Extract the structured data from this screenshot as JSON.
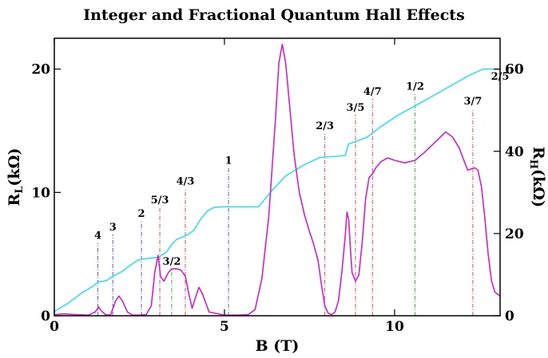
{
  "chart_data": {
    "type": "line",
    "title": "Integer and Fractional Quantum Hall Effects",
    "xlabel": "B (T)",
    "ylabel_left": "R",
    "ylabel_left_sub": "L",
    "ylabel_left_unit": "(kΩ)",
    "ylabel_right": "R",
    "ylabel_right_sub": "H",
    "ylabel_right_unit": "(kΩ)",
    "xlim": [
      0,
      13.1
    ],
    "ylim_left": [
      0,
      22.5
    ],
    "ylim_right": [
      0,
      67.5
    ],
    "x_ticks": [
      0,
      5,
      10
    ],
    "x_tick_labels": [
      "0",
      "5",
      "10"
    ],
    "y_left_ticks": [
      0,
      10,
      20
    ],
    "y_left_tick_labels": [
      "0",
      "10",
      "20"
    ],
    "y_right_ticks": [
      0,
      20,
      40,
      60
    ],
    "y_right_tick_labels": [
      "0",
      "20",
      "40",
      "60"
    ],
    "grid": false,
    "series": [
      {
        "axis": "right",
        "color": "#33e0f0",
        "x": [
          0,
          0.4,
          0.8,
          1.1,
          1.3,
          1.55,
          1.7,
          2.0,
          2.25,
          2.45,
          2.6,
          3.05,
          3.3,
          3.45,
          3.6,
          3.9,
          4.1,
          4.3,
          4.5,
          4.7,
          5.0,
          6.0,
          6.4,
          6.8,
          7.3,
          7.8,
          8.3,
          8.55,
          8.65,
          8.9,
          9.2,
          9.6,
          10.1,
          10.7,
          11.2,
          11.7,
          12.2,
          12.6,
          13.1
        ],
        "values": [
          1,
          3,
          5.5,
          7,
          8.2,
          8.6,
          9.5,
          10.8,
          12.4,
          13.5,
          13.8,
          14.2,
          15.5,
          17.4,
          18.6,
          19.6,
          20.8,
          23.5,
          25.5,
          26.4,
          26.5,
          26.5,
          30.5,
          34,
          36.5,
          38.5,
          38.8,
          39,
          41.8,
          42.5,
          43.5,
          46,
          48.8,
          51.5,
          53.8,
          56.2,
          58.5,
          60,
          60
        ]
      },
      {
        "axis": "left",
        "color": "#d020d0",
        "x": [
          0,
          0.3,
          0.6,
          1.0,
          1.2,
          1.3,
          1.38,
          1.5,
          1.65,
          1.8,
          1.9,
          2.0,
          2.15,
          2.3,
          2.5,
          2.7,
          2.85,
          2.95,
          3.05,
          3.12,
          3.22,
          3.35,
          3.45,
          3.6,
          3.72,
          3.85,
          3.95,
          4.05,
          4.15,
          4.25,
          4.35,
          4.55,
          5.0,
          5.4,
          5.7,
          5.9,
          6.1,
          6.3,
          6.5,
          6.6,
          6.7,
          6.8,
          6.9,
          7.05,
          7.2,
          7.35,
          7.5,
          7.6,
          7.75,
          7.85,
          7.95,
          8.05,
          8.15,
          8.25,
          8.35,
          8.45,
          8.55,
          8.6,
          8.65,
          8.7,
          8.75,
          8.85,
          8.95,
          9.05,
          9.15,
          9.25,
          9.35,
          9.45,
          9.6,
          9.8,
          10.0,
          10.3,
          10.6,
          10.9,
          11.2,
          11.5,
          11.7,
          11.9,
          12.05,
          12.15,
          12.25,
          12.35,
          12.45,
          12.55,
          12.65,
          12.75,
          12.85,
          12.95,
          13.1
        ],
        "values": [
          0.1,
          0.15,
          0.1,
          0.05,
          0.3,
          0.7,
          0.4,
          0.1,
          0.05,
          1.2,
          1.6,
          1.2,
          0.3,
          0.05,
          0.05,
          0.1,
          0.8,
          3.5,
          4.9,
          3.2,
          2.8,
          3.5,
          3.8,
          3.8,
          3.7,
          3.2,
          1.8,
          0.6,
          1.5,
          2.3,
          1.8,
          0.3,
          0.05,
          0.05,
          0.1,
          0.5,
          3.0,
          8.0,
          16.0,
          20.5,
          22.0,
          20.5,
          17.5,
          13.0,
          10.0,
          8.2,
          6.8,
          6.0,
          4.5,
          2.5,
          0.8,
          0.2,
          0.1,
          0.3,
          1.2,
          3.5,
          6.5,
          8.4,
          7.8,
          5.5,
          3.5,
          2.8,
          3.3,
          6.0,
          9.5,
          11.2,
          11.5,
          12.0,
          12.5,
          12.8,
          12.6,
          12.4,
          12.6,
          13.3,
          14.1,
          14.9,
          14.5,
          13.6,
          12.5,
          11.8,
          11.9,
          12.0,
          11.8,
          10.5,
          8.0,
          5.0,
          2.8,
          1.9,
          1.6
        ]
      }
    ],
    "markers": [
      {
        "x": 1.28,
        "label": "4",
        "color": "#6060c0",
        "top": 5.9
      },
      {
        "x": 1.72,
        "label": "3",
        "color": "#6060c0",
        "top": 6.6
      },
      {
        "x": 2.56,
        "label": "2",
        "color": "#6060c0",
        "top": 7.7
      },
      {
        "x": 3.1,
        "label": "5/3",
        "color": "#e05050",
        "top": 8.8
      },
      {
        "x": 3.45,
        "label": "3/2",
        "color": "#40c040",
        "top": 3.8
      },
      {
        "x": 3.85,
        "label": "4/3",
        "color": "#e05050",
        "top": 10.3
      },
      {
        "x": 5.12,
        "label": "1",
        "color": "#6060c0",
        "top": 12.0
      },
      {
        "x": 7.95,
        "label": "2/3",
        "color": "#e05050",
        "top": 14.8
      },
      {
        "x": 8.85,
        "label": "3/5",
        "color": "#e05050",
        "top": 16.3
      },
      {
        "x": 9.35,
        "label": "4/7",
        "color": "#e05050",
        "top": 17.6
      },
      {
        "x": 10.6,
        "label": "1/2",
        "color": "#40c040",
        "top": 18.0
      },
      {
        "x": 12.3,
        "label": "3/7",
        "color": "#e05050",
        "top": 16.8
      },
      {
        "x": 13.1,
        "label": "2/5",
        "color": "#e05050",
        "top": 18.8
      }
    ]
  }
}
